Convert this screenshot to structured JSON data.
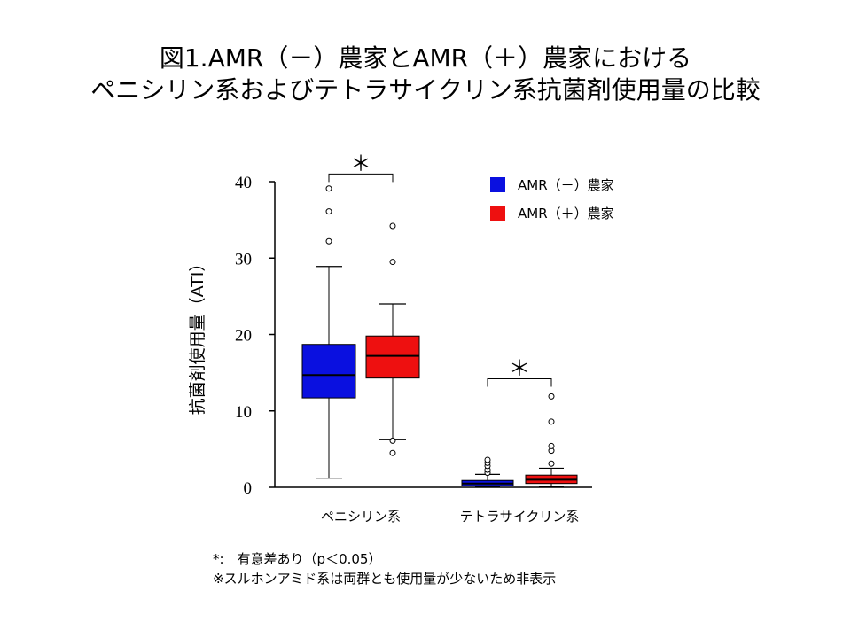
{
  "title": {
    "line1": "図1.AMR（－）農家とAMR（＋）農家における",
    "line2": "ペニシリン系およびテトラサイクリン系抗菌剤使用量の比較"
  },
  "colors": {
    "amr_neg": "#0a10e0",
    "amr_pos": "#ee1010",
    "axis": "#000000"
  },
  "chart_data": {
    "type": "boxplot",
    "title": "図1.AMR（－）農家とAMR（＋）農家における ペニシリン系およびテトラサイクリン系抗菌剤使用量の比較",
    "ylabel": "抗菌剤使用量（ATI）",
    "xlabel": "",
    "ylim": [
      0,
      40
    ],
    "yticks": [
      0,
      10,
      20,
      30,
      40
    ],
    "categories": [
      "ペニシリン系",
      "テトラサイクリン系"
    ],
    "legend_position": "top-right",
    "series": [
      {
        "name": "AMR（－）農家",
        "color": "#0a10e0",
        "boxes": [
          {
            "whisker_low": 1.2,
            "q1": 11.7,
            "median": 14.7,
            "q3": 18.7,
            "whisker_high": 28.9,
            "outliers": [
              32.2,
              36.1,
              39.1
            ]
          },
          {
            "whisker_low": 0.1,
            "q1": 0.2,
            "median": 0.5,
            "q3": 0.9,
            "whisker_high": 1.7,
            "outliers": [
              1.9,
              2.3,
              2.8,
              3.2,
              3.6
            ]
          }
        ]
      },
      {
        "name": "AMR（＋）農家",
        "color": "#ee1010",
        "boxes": [
          {
            "whisker_low": 6.3,
            "q1": 14.3,
            "median": 17.2,
            "q3": 19.8,
            "whisker_high": 24.0,
            "outliers": [
              4.5,
              6.1,
              29.5,
              34.2
            ]
          },
          {
            "whisker_low": 0.1,
            "q1": 0.5,
            "median": 1.0,
            "q3": 1.6,
            "whisker_high": 2.5,
            "outliers": [
              3.1,
              4.8,
              5.4,
              8.6,
              11.9
            ]
          }
        ]
      }
    ],
    "annotations": [
      {
        "text": "＊",
        "group": "ペニシリン系",
        "y": 41.0
      },
      {
        "text": "＊",
        "group": "テトラサイクリン系",
        "y": 14.2
      }
    ]
  },
  "notes": {
    "line1": "*:　有意差あり（p＜0.05）",
    "line2": "※スルホンアミド系は両群とも使用量が少ないため非表示"
  }
}
